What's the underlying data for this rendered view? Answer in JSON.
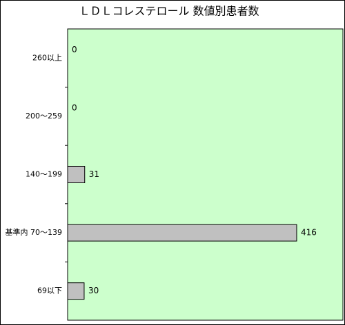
{
  "chart_data": {
    "type": "hbar",
    "title": "ＬＤＬコレステロール 数値別患者数",
    "categories": [
      "260以上",
      "200～259",
      "140～199",
      "基準内 70～139",
      "69以下"
    ],
    "values": [
      0,
      0,
      31,
      416,
      30
    ],
    "color": "#c0c0c0",
    "background": "#ccffcc",
    "xlim": [
      0,
      500
    ]
  }
}
